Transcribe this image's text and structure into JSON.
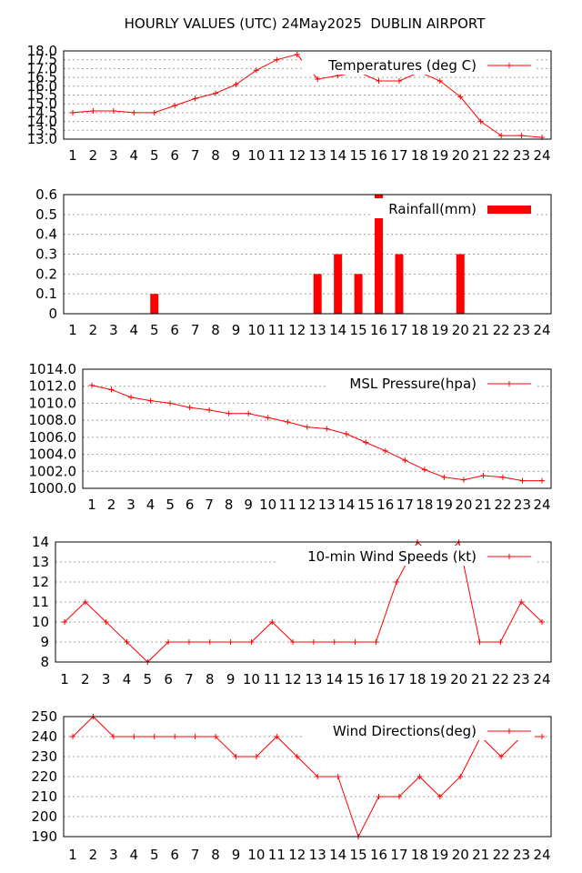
{
  "title": "HOURLY VALUES (UTC) 24May2025  DUBLIN AIRPORT",
  "colors": {
    "series": "#ff0000",
    "grid": "#a0a0a0",
    "frame": "#000000"
  },
  "chart_data": [
    {
      "type": "line",
      "legend": "Temperatures (deg C)",
      "legend_position": "top-right",
      "grid": true,
      "x": [
        1,
        2,
        3,
        4,
        5,
        6,
        7,
        8,
        9,
        10,
        11,
        12,
        13,
        14,
        15,
        16,
        17,
        18,
        19,
        20,
        21,
        22,
        23,
        24
      ],
      "values": [
        14.5,
        14.6,
        14.6,
        14.5,
        14.5,
        14.9,
        15.3,
        15.6,
        16.1,
        16.9,
        17.5,
        17.8,
        16.4,
        16.6,
        16.8,
        16.3,
        16.3,
        16.8,
        16.3,
        15.4,
        14.0,
        13.2,
        13.2,
        13.1
      ],
      "ylim": [
        13.0,
        18.0
      ],
      "yticks": [
        "13.0",
        "13.5",
        "14.0",
        "14.5",
        "15.0",
        "15.5",
        "16.0",
        "16.5",
        "17.0",
        "17.5",
        "18.0"
      ],
      "xticks": [
        "1",
        "2",
        "3",
        "4",
        "5",
        "6",
        "7",
        "8",
        "9",
        "10",
        "11",
        "12",
        "13",
        "14",
        "15",
        "16",
        "17",
        "18",
        "19",
        "20",
        "21",
        "22",
        "23",
        "24"
      ]
    },
    {
      "type": "bar",
      "legend": "Rainfall(mm)",
      "legend_position": "top-right",
      "grid": true,
      "x": [
        1,
        2,
        3,
        4,
        5,
        6,
        7,
        8,
        9,
        10,
        11,
        12,
        13,
        14,
        15,
        16,
        17,
        18,
        19,
        20,
        21,
        22,
        23,
        24
      ],
      "values": [
        0,
        0,
        0,
        0,
        0.1,
        0,
        0,
        0,
        0,
        0,
        0,
        0,
        0.2,
        0.3,
        0.2,
        0.6,
        0.3,
        0,
        0,
        0.3,
        0,
        0,
        0,
        0
      ],
      "ylim": [
        0,
        0.6
      ],
      "yticks": [
        "0",
        "0.1",
        "0.2",
        "0.3",
        "0.4",
        "0.5",
        "0.6"
      ],
      "xticks": [
        "1",
        "2",
        "3",
        "4",
        "5",
        "6",
        "7",
        "8",
        "9",
        "10",
        "11",
        "12",
        "13",
        "14",
        "15",
        "16",
        "17",
        "18",
        "19",
        "20",
        "21",
        "22",
        "23",
        "24"
      ]
    },
    {
      "type": "line",
      "legend": "MSL Pressure(hpa)",
      "legend_position": "top-right",
      "grid": true,
      "x": [
        1,
        2,
        3,
        4,
        5,
        6,
        7,
        8,
        9,
        10,
        11,
        12,
        13,
        14,
        15,
        16,
        17,
        18,
        19,
        20,
        21,
        22,
        23,
        24
      ],
      "values": [
        1012.1,
        1011.6,
        1010.7,
        1010.3,
        1010.0,
        1009.5,
        1009.2,
        1008.8,
        1008.8,
        1008.3,
        1007.8,
        1007.2,
        1007.0,
        1006.4,
        1005.4,
        1004.4,
        1003.3,
        1002.2,
        1001.3,
        1001.0,
        1001.5,
        1001.3,
        1000.9,
        1000.9
      ],
      "ylim": [
        1000.0,
        1014.0
      ],
      "yticks": [
        "1000.0",
        "1002.0",
        "1004.0",
        "1006.0",
        "1008.0",
        "1010.0",
        "1012.0",
        "1014.0"
      ],
      "xticks": [
        "1",
        "2",
        "3",
        "4",
        "5",
        "6",
        "7",
        "8",
        "9",
        "10",
        "11",
        "12",
        "13",
        "14",
        "15",
        "16",
        "17",
        "18",
        "19",
        "20",
        "21",
        "22",
        "23",
        "24"
      ]
    },
    {
      "type": "line",
      "legend": "10-min Wind Speeds (kt)",
      "legend_position": "top-right",
      "grid": true,
      "x": [
        1,
        2,
        3,
        4,
        5,
        6,
        7,
        8,
        9,
        10,
        11,
        12,
        13,
        14,
        15,
        16,
        17,
        18,
        19,
        20,
        21,
        22,
        23,
        24
      ],
      "values": [
        10,
        11,
        10,
        9,
        8,
        9,
        9,
        9,
        9,
        9,
        10,
        9,
        9,
        9,
        9,
        9,
        12,
        14,
        13,
        14,
        9,
        9,
        11,
        10
      ],
      "ylim": [
        8,
        14
      ],
      "yticks": [
        "8",
        "9",
        "10",
        "11",
        "12",
        "13",
        "14"
      ],
      "xticks": [
        "1",
        "2",
        "3",
        "4",
        "5",
        "6",
        "7",
        "8",
        "9",
        "10",
        "11",
        "12",
        "13",
        "14",
        "15",
        "16",
        "17",
        "18",
        "19",
        "20",
        "21",
        "22",
        "23",
        "24"
      ]
    },
    {
      "type": "line",
      "legend": "Wind Directions(deg)",
      "legend_position": "top-right",
      "grid": true,
      "x": [
        1,
        2,
        3,
        4,
        5,
        6,
        7,
        8,
        9,
        10,
        11,
        12,
        13,
        14,
        15,
        16,
        17,
        18,
        19,
        20,
        21,
        22,
        23,
        24
      ],
      "values": [
        240,
        250,
        240,
        240,
        240,
        240,
        240,
        240,
        230,
        230,
        240,
        230,
        220,
        220,
        190,
        210,
        210,
        220,
        210,
        220,
        240,
        230,
        240,
        240
      ],
      "ylim": [
        190,
        250
      ],
      "yticks": [
        "190",
        "200",
        "210",
        "220",
        "230",
        "240",
        "250"
      ],
      "xticks": [
        "1",
        "2",
        "3",
        "4",
        "5",
        "6",
        "7",
        "8",
        "9",
        "10",
        "11",
        "12",
        "13",
        "14",
        "15",
        "16",
        "17",
        "18",
        "19",
        "20",
        "21",
        "22",
        "23",
        "24"
      ]
    }
  ]
}
